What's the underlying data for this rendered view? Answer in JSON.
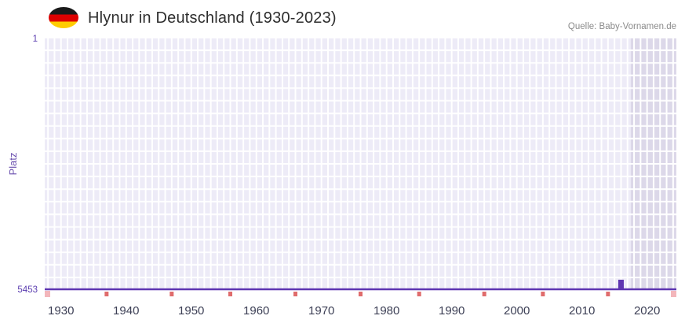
{
  "header": {
    "title": "Hlynur in Deutschland (1930-2023)",
    "source": "Quelle: Baby-Vornamen.de",
    "flag": "germany-flag"
  },
  "chart_data": {
    "type": "line",
    "title": "Hlynur in Deutschland (1930-2023)",
    "xlabel": "",
    "ylabel": "Platz",
    "x_ticks": [
      1930,
      1940,
      1950,
      1960,
      1970,
      1980,
      1990,
      2000,
      2010,
      2020
    ],
    "y_ticks": [
      1,
      5453
    ],
    "x_domain": [
      1927.5,
      2024.5
    ],
    "y_domain": [
      1,
      5453
    ],
    "y_inverted": true,
    "grid": true,
    "legend": false,
    "series": [
      {
        "name": "Hlynur",
        "baseline_value": 5453,
        "baseline_span": [
          1930,
          2023
        ],
        "peaks": [
          {
            "year": 2016,
            "value": 5230
          }
        ]
      }
    ],
    "shaded_band": {
      "from": 2017.5,
      "to": 2024.5
    },
    "bottom_tick_years": [
      1937,
      1947,
      1956,
      1966,
      1976,
      1985,
      1995,
      2004,
      2014
    ],
    "colors": {
      "plot_bg": "#edebf7",
      "grid": "#ffffff",
      "band": "#dcd8e9",
      "line": "#5e35b1",
      "marker": "#5e35b1",
      "tick_pink": "#e06c6c",
      "edge_tick_pink": "#f3b6bb",
      "axis_text": "#3d4056",
      "y_text": "#5b3db0"
    }
  }
}
